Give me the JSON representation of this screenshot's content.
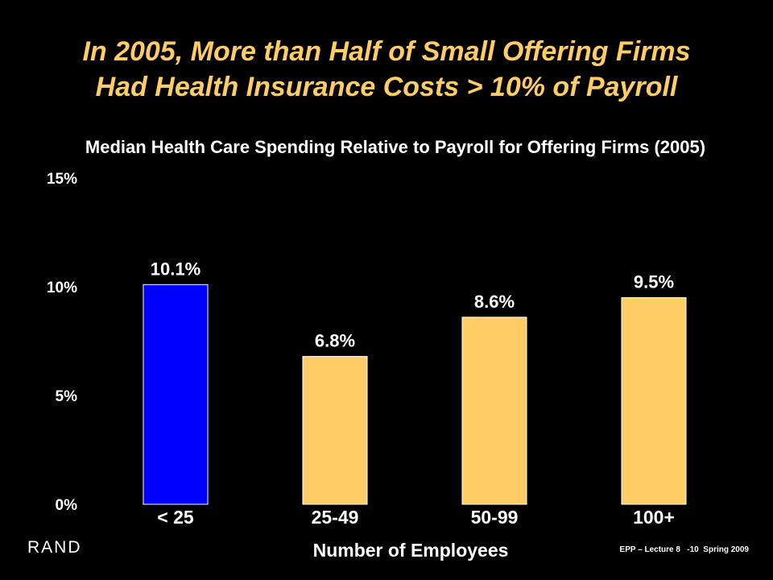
{
  "slide": {
    "title_line1": "In 2005, More than Half of Small Offering Firms",
    "title_line2": "Had Health Insurance Costs > 10% of Payroll",
    "logo": "RAND",
    "footer": "EPP – Lecture 8   -10  Spring 2009"
  },
  "colors": {
    "background": "#000000",
    "title": "#FFCC66",
    "highlight_bar": "#0000FF",
    "bar": "#FFCC66",
    "text": "#FFFFFF"
  },
  "chart_data": {
    "type": "bar",
    "title": "Median Health Care Spending Relative to Payroll for Offering Firms (2005)",
    "xlabel": "Number of Employees",
    "ylabel": "",
    "categories": [
      "< 25",
      "25-49",
      "50-99",
      "100+"
    ],
    "values": [
      10.1,
      6.8,
      8.6,
      9.5
    ],
    "data_labels": [
      "10.1%",
      "6.8%",
      "8.6%",
      "9.5%"
    ],
    "highlight_index": 0,
    "ylim": [
      0,
      15
    ],
    "yticks": [
      0,
      5,
      10,
      15
    ],
    "ytick_labels": [
      "0%",
      "5%",
      "10%",
      "15%"
    ],
    "grid": false,
    "legend": "none"
  }
}
